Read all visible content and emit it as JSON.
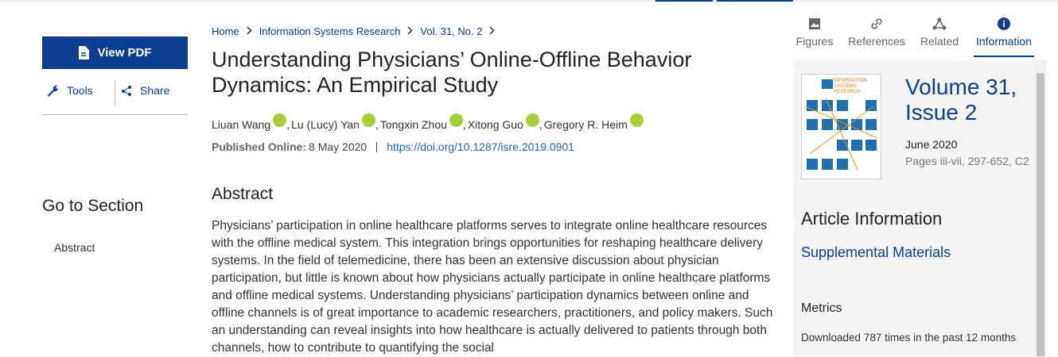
{
  "left": {
    "view_pdf": "View PDF",
    "tools": "Tools",
    "share": "Share",
    "go_to_section": "Go to Section",
    "sections": [
      "Abstract"
    ]
  },
  "breadcrumb": [
    "Home",
    "Information Systems Research",
    "Vol. 31, No. 2"
  ],
  "article": {
    "title": "Understanding Physicians’ Online-Offline Behavior Dynamics: An Empirical Study",
    "authors": [
      "Liuan Wang",
      "Lu (Lucy) Yan",
      "Tongxin Zhou",
      "Xitong Guo",
      "Gregory R. Heim"
    ],
    "published_label": "Published Online:",
    "published_date": "8 May 2020",
    "doi": "https://doi.org/10.1287/isre.2019.0901",
    "abstract_heading": "Abstract",
    "abstract": "Physicians’ participation in online healthcare platforms serves to integrate online healthcare resources with the offline medical system. This integration brings opportunities for reshaping healthcare delivery systems. In the field of telemedicine, there has been an extensive discussion about physician participation, but little is known about how physicians actually participate in online healthcare platforms and offline medical systems. Understanding physicians’ participation dynamics between online and offline channels is of great importance to academic researchers, practitioners, and policy makers. Such an understanding can reveal insights into how healthcare is actually delivered to patients through both channels, how to contribute to quantifying the social"
  },
  "tabs": [
    "Figures",
    "References",
    "Related",
    "Information"
  ],
  "info": {
    "cover_title": "INFORMATION SYSTEMS RESEARCH",
    "volume": "Volume 31, Issue 2",
    "date": "June 2020",
    "pages": "Pages iii-vii, 297-652, C2",
    "article_information": "Article Information",
    "supplemental": "Supplemental Materials",
    "metrics": "Metrics",
    "downloads": "Downloaded 787 times in the past 12 months"
  }
}
